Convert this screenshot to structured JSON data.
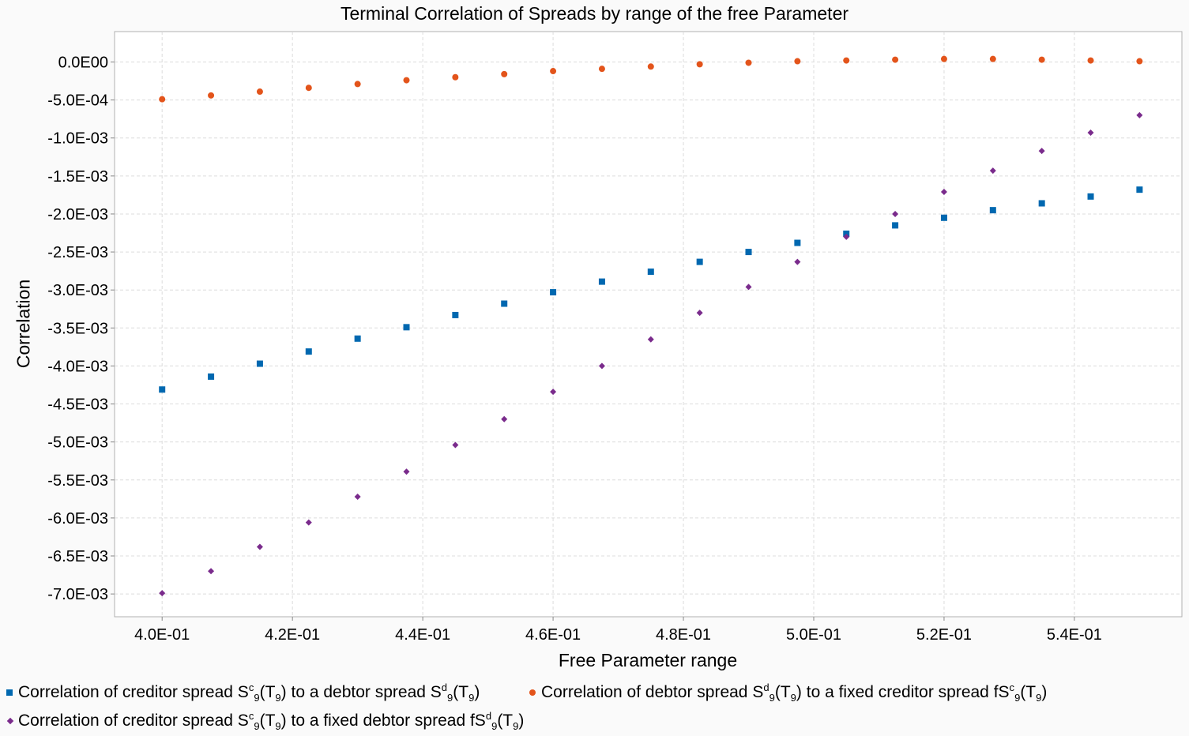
{
  "chart_data": {
    "type": "scatter",
    "title": "Terminal Correlation of Spreads by range of the free Parameter",
    "xlabel": "Free Parameter range",
    "ylabel": "Correlation",
    "xlim": [
      0.3927,
      0.5565
    ],
    "ylim": [
      -0.0073,
      0.0004
    ],
    "x_ticks": [
      "4.0E-01",
      "4.2E-01",
      "4.4E-01",
      "4.6E-01",
      "4.8E-01",
      "5.0E-01",
      "5.2E-01",
      "5.4E-01"
    ],
    "y_ticks": [
      "0.0E00",
      "-5.0E-04",
      "-1.0E-03",
      "-1.5E-03",
      "-2.0E-03",
      "-2.5E-03",
      "-3.0E-03",
      "-3.5E-03",
      "-4.0E-03",
      "-4.5E-03",
      "-5.0E-03",
      "-5.5E-03",
      "-6.0E-03",
      "-6.5E-03",
      "-7.0E-03"
    ],
    "grid": true,
    "legend_position": "bottom",
    "x": [
      0.4,
      0.4075,
      0.415,
      0.4225,
      0.43,
      0.4375,
      0.445,
      0.4525,
      0.46,
      0.4675,
      0.475,
      0.4825,
      0.49,
      0.4975,
      0.505,
      0.5125,
      0.52,
      0.5275,
      0.535,
      0.5425,
      0.55
    ],
    "series": [
      {
        "name": "Correlation of creditor spread S^c_9(T_9) to a debtor spread S^d_9(T_9)",
        "marker": "square",
        "color": "#0068b0",
        "values": [
          -0.00431,
          -0.00414,
          -0.00397,
          -0.00381,
          -0.00364,
          -0.00349,
          -0.00333,
          -0.00318,
          -0.00303,
          -0.00289,
          -0.00276,
          -0.00263,
          -0.0025,
          -0.00238,
          -0.00226,
          -0.00215,
          -0.00205,
          -0.00195,
          -0.00186,
          -0.00177,
          -0.00168
        ]
      },
      {
        "name": "Correlation of debtor spread S^d_9(T_9) to a fixed creditor spread fS^c_9(T_9)",
        "marker": "circle",
        "color": "#e3541b",
        "values": [
          -0.00049,
          -0.00044,
          -0.00039,
          -0.00034,
          -0.00029,
          -0.00024,
          -0.0002,
          -0.00016,
          -0.00012,
          -9e-05,
          -6e-05,
          -3e-05,
          -1e-05,
          1e-05,
          2e-05,
          3e-05,
          4e-05,
          4e-05,
          3e-05,
          2e-05,
          1e-05
        ]
      },
      {
        "name": "Correlation of creditor spread S^c_9(T_9) to a fixed debtor spread fS^d_9(T_9)",
        "marker": "diamond",
        "color": "#7a2b8c",
        "values": [
          -0.00699,
          -0.0067,
          -0.00638,
          -0.00606,
          -0.00572,
          -0.00539,
          -0.00504,
          -0.0047,
          -0.00434,
          -0.004,
          -0.00365,
          -0.0033,
          -0.00296,
          -0.00263,
          -0.0023,
          -0.002,
          -0.00171,
          -0.00143,
          -0.00117,
          -0.00093,
          -0.0007
        ]
      }
    ],
    "legend": [
      {
        "pre": "Correlation of creditor spread S",
        "sup1": "c",
        "sub1": "9",
        "mid": "(T",
        "sub2": "9",
        "post": ") to a debtor spread S",
        "sup3": "d",
        "sub3": "9",
        "mid2": "(T",
        "sub4": "9",
        "end": ")"
      },
      {
        "pre": "Correlation of debtor spread S",
        "sup1": "d",
        "sub1": "9",
        "mid": "(T",
        "sub2": "9",
        "post": ") to a fixed creditor spread fS",
        "sup3": "c",
        "sub3": "9",
        "mid2": "(T",
        "sub4": "9",
        "end": ")"
      },
      {
        "pre": "Correlation of creditor spread S",
        "sup1": "c",
        "sub1": "9",
        "mid": "(T",
        "sub2": "9",
        "post": ") to a fixed debtor spread fS",
        "sup3": "d",
        "sub3": "9",
        "mid2": "(T",
        "sub4": "9",
        "end": ")"
      }
    ]
  }
}
